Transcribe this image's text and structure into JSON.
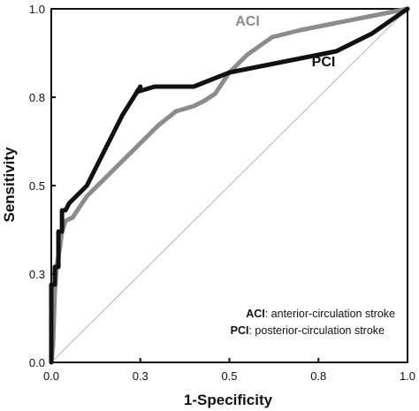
{
  "chart_data": {
    "type": "line",
    "xlabel": "1-Specificity",
    "ylabel": "Sensitivity",
    "xlim": [
      0,
      1
    ],
    "ylim": [
      0,
      1
    ],
    "x_ticks": [
      0.0,
      0.25,
      0.5,
      0.75,
      1.0
    ],
    "x_tick_labels": [
      "0.0",
      "0.3",
      "0.5",
      "0.8",
      "1.0"
    ],
    "y_ticks": [
      0.0,
      0.25,
      0.5,
      0.75,
      1.0
    ],
    "y_tick_labels": [
      "0.0",
      "0.3",
      "0.5",
      "0.8",
      "1.0"
    ],
    "reference_line": [
      [
        0,
        0
      ],
      [
        1,
        1
      ]
    ],
    "series": [
      {
        "name": "ACI",
        "color": "#8c8c8c",
        "points": [
          [
            0.0,
            0.0
          ],
          [
            0.005,
            0.05
          ],
          [
            0.01,
            0.2
          ],
          [
            0.015,
            0.27
          ],
          [
            0.02,
            0.3
          ],
          [
            0.025,
            0.33
          ],
          [
            0.03,
            0.37
          ],
          [
            0.04,
            0.4
          ],
          [
            0.06,
            0.41
          ],
          [
            0.08,
            0.44
          ],
          [
            0.1,
            0.47
          ],
          [
            0.13,
            0.5
          ],
          [
            0.16,
            0.53
          ],
          [
            0.2,
            0.57
          ],
          [
            0.23,
            0.6
          ],
          [
            0.27,
            0.64
          ],
          [
            0.3,
            0.67
          ],
          [
            0.35,
            0.71
          ],
          [
            0.4,
            0.725
          ],
          [
            0.43,
            0.74
          ],
          [
            0.46,
            0.76
          ],
          [
            0.5,
            0.82
          ],
          [
            0.55,
            0.87
          ],
          [
            0.62,
            0.92
          ],
          [
            0.7,
            0.94
          ],
          [
            0.8,
            0.96
          ],
          [
            0.9,
            0.98
          ],
          [
            1.0,
            1.0
          ]
        ]
      },
      {
        "name": "PCI",
        "color": "#111111",
        "points": [
          [
            0.0,
            0.0
          ],
          [
            0.0,
            0.22
          ],
          [
            0.01,
            0.22
          ],
          [
            0.01,
            0.27
          ],
          [
            0.02,
            0.27
          ],
          [
            0.02,
            0.37
          ],
          [
            0.03,
            0.37
          ],
          [
            0.03,
            0.43
          ],
          [
            0.04,
            0.43
          ],
          [
            0.05,
            0.45
          ],
          [
            0.1,
            0.5
          ],
          [
            0.15,
            0.6
          ],
          [
            0.2,
            0.7
          ],
          [
            0.25,
            0.78
          ],
          [
            0.24,
            0.765
          ],
          [
            0.29,
            0.78
          ],
          [
            0.32,
            0.78
          ],
          [
            0.35,
            0.78
          ],
          [
            0.4,
            0.78
          ],
          [
            0.45,
            0.8
          ],
          [
            0.5,
            0.82
          ],
          [
            0.6,
            0.84
          ],
          [
            0.7,
            0.86
          ],
          [
            0.75,
            0.87
          ],
          [
            0.8,
            0.88
          ],
          [
            0.9,
            0.93
          ],
          [
            1.0,
            1.0
          ]
        ]
      }
    ],
    "annotations": [
      {
        "key": "ACI",
        "text": ": anterior-circulation stroke"
      },
      {
        "key": "PCI",
        "text": ": posterior-circulation stroke"
      }
    ]
  }
}
